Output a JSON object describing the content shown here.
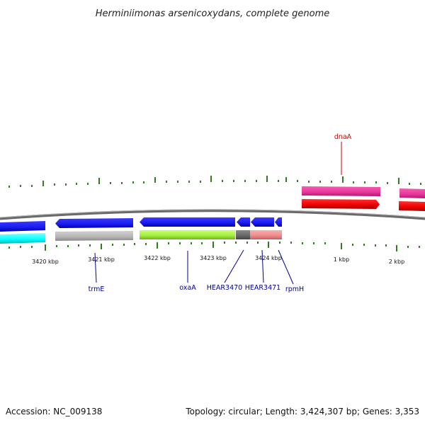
{
  "title": "Herminiimonas arsenicoxydans, complete genome",
  "accession": "Accession: NC_009138",
  "topology": "Topology: circular; Length: 3,424,307 bp; Genes: 3,353",
  "scale_labels": [
    "3420 kbp",
    "3421 kbp",
    "3422 kbp",
    "3423 kbp",
    "3424 kbp",
    "1 kbp",
    "2 kbp"
  ],
  "gene_labels": [
    {
      "name": "dnaA",
      "color": "#cc0000"
    },
    {
      "name": "trmE",
      "color": "#00008b"
    },
    {
      "name": "oxaA",
      "color": "#00008b"
    },
    {
      "name": "HEAR3470",
      "color": "#00008b"
    },
    {
      "name": "HEAR3471",
      "color": "#00008b"
    },
    {
      "name": "rpmH",
      "color": "#00008b"
    }
  ],
  "colors": {
    "backbone": "#808080",
    "cds_reverse": "#1a1aee",
    "cds_forward": "#ee0000",
    "gene_forward": "#e8359a",
    "cyan_track": "#00ffff",
    "gray_track": "#b5b5b5",
    "green_track": "#a0ee3c",
    "dark_track": "#666666",
    "salmon_track": "#f08a8a",
    "tick": "#2e7d1e"
  }
}
